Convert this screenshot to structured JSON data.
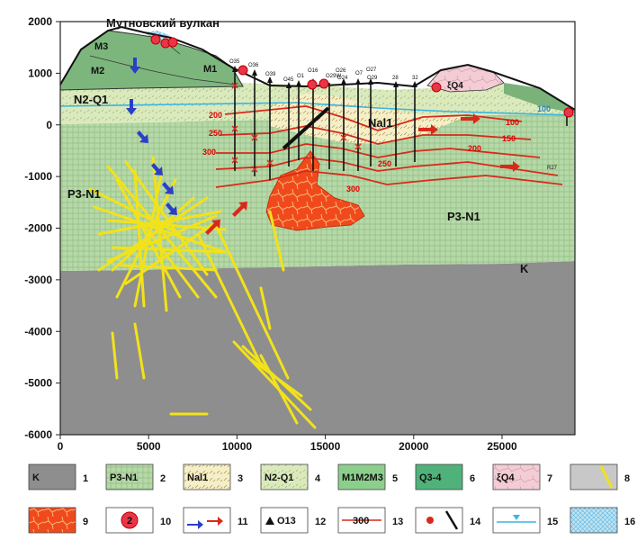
{
  "title": "Мутновский вулкан",
  "axes": {
    "x_ticks": [
      "0",
      "5000",
      "10000",
      "15000",
      "20000",
      "25000"
    ],
    "y_ticks": [
      "2000",
      "1000",
      "0",
      "-1000",
      "-2000",
      "-3000",
      "-4000",
      "-5000",
      "-6000"
    ]
  },
  "units": {
    "M3": "M3",
    "M2": "M2",
    "M1": "M1",
    "N2Q1": "N2-Q1",
    "P3N1_left": "P3-N1",
    "P3N1_right": "P3-N1",
    "Nal1": "Nal1",
    "Q4": "ξQ4",
    "K": "K"
  },
  "wells": [
    "O35",
    "O36",
    "O39",
    "O45",
    "O1",
    "O16",
    "O26",
    "O29W",
    "O24",
    "O7",
    "O27",
    "O29",
    "28",
    "32"
  ],
  "well_R27": "R27",
  "isotherms": [
    "100",
    "150",
    "200",
    "250",
    "300",
    "100",
    "150",
    "200",
    "250",
    "300"
  ],
  "legend": [
    {
      "n": "1",
      "label": "K"
    },
    {
      "n": "2",
      "label": "P3-N1"
    },
    {
      "n": "3",
      "label": "Nal1"
    },
    {
      "n": "4",
      "label": "N2-Q1"
    },
    {
      "n": "5",
      "label": "M1M2M3"
    },
    {
      "n": "6",
      "label": "Q3-4"
    },
    {
      "n": "7",
      "label": "ξQ4"
    },
    {
      "n": "8",
      "label": ""
    },
    {
      "n": "9",
      "label": ""
    },
    {
      "n": "10",
      "label": "2"
    },
    {
      "n": "11",
      "label": ""
    },
    {
      "n": "12",
      "label": "O13"
    },
    {
      "n": "13",
      "label": "300"
    },
    {
      "n": "14",
      "label": ""
    },
    {
      "n": "15",
      "label": ""
    },
    {
      "n": "16",
      "label": ""
    }
  ],
  "colors": {
    "basement": "#8c8c8c",
    "green_tuff": "#a9cf9a",
    "volcanic": "#7ab27a",
    "nal": "#f3ecc2",
    "n2q1": "#d7e8b8",
    "q4": "#f2c9d2",
    "intrusion": "#f04a1c",
    "dike": "#f3e31c",
    "isotherm": "#d82a1a"
  }
}
